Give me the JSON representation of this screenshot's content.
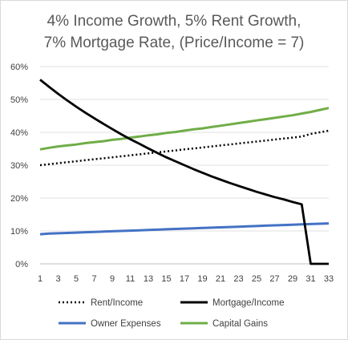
{
  "chart_data": {
    "type": "line",
    "title_lines": [
      "4% Income Growth, 5% Rent Growth,",
      "7% Mortgage Rate, (Price/Income = 7)"
    ],
    "x": [
      1,
      2,
      3,
      4,
      5,
      6,
      7,
      8,
      9,
      10,
      11,
      12,
      13,
      14,
      15,
      16,
      17,
      18,
      19,
      20,
      21,
      22,
      23,
      24,
      25,
      26,
      27,
      28,
      29,
      30,
      31,
      32,
      33
    ],
    "x_tick_labels": [
      "1",
      "3",
      "5",
      "7",
      "9",
      "11",
      "13",
      "15",
      "17",
      "19",
      "21",
      "23",
      "25",
      "27",
      "29",
      "31",
      "33"
    ],
    "y_tick_labels": [
      "0%",
      "10%",
      "20%",
      "30%",
      "40%",
      "50%",
      "60%"
    ],
    "ylim": [
      0,
      0.6
    ],
    "grid": true,
    "legend_position": "bottom",
    "series": [
      {
        "name": "Rent/Income",
        "color": "#000000",
        "dash": "dotted",
        "values": [
          0.3,
          0.303,
          0.306,
          0.309,
          0.312,
          0.315,
          0.318,
          0.321,
          0.324,
          0.327,
          0.33,
          0.333,
          0.336,
          0.339,
          0.342,
          0.345,
          0.348,
          0.351,
          0.354,
          0.357,
          0.36,
          0.363,
          0.366,
          0.369,
          0.372,
          0.375,
          0.378,
          0.381,
          0.384,
          0.387,
          0.395,
          0.4,
          0.405
        ]
      },
      {
        "name": "Mortgage/Income",
        "color": "#000000",
        "dash": "solid",
        "values": [
          0.56,
          0.538,
          0.517,
          0.497,
          0.478,
          0.46,
          0.443,
          0.426,
          0.41,
          0.394,
          0.379,
          0.365,
          0.351,
          0.337,
          0.324,
          0.312,
          0.3,
          0.288,
          0.277,
          0.266,
          0.256,
          0.246,
          0.237,
          0.228,
          0.219,
          0.211,
          0.203,
          0.196,
          0.188,
          0.181,
          0.0,
          0.0,
          0.0
        ]
      },
      {
        "name": "Owner Expenses",
        "color": "#4472c4",
        "dash": "solid",
        "values": [
          0.09,
          0.092,
          0.093,
          0.094,
          0.095,
          0.096,
          0.097,
          0.098,
          0.099,
          0.1,
          0.101,
          0.102,
          0.103,
          0.104,
          0.105,
          0.106,
          0.107,
          0.108,
          0.109,
          0.11,
          0.111,
          0.112,
          0.113,
          0.114,
          0.115,
          0.116,
          0.117,
          0.118,
          0.119,
          0.12,
          0.121,
          0.122,
          0.123
        ]
      },
      {
        "name": "Capital Gains",
        "color": "#70ad47",
        "dash": "solid",
        "values": [
          0.348,
          0.353,
          0.357,
          0.36,
          0.363,
          0.367,
          0.37,
          0.373,
          0.377,
          0.38,
          0.384,
          0.387,
          0.391,
          0.394,
          0.398,
          0.401,
          0.405,
          0.409,
          0.412,
          0.416,
          0.42,
          0.424,
          0.428,
          0.432,
          0.436,
          0.44,
          0.444,
          0.448,
          0.452,
          0.457,
          0.462,
          0.468,
          0.474
        ]
      }
    ]
  }
}
